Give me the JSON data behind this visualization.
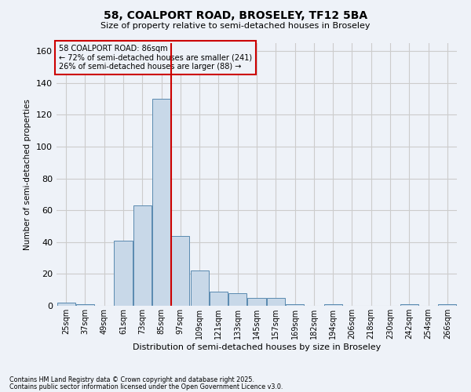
{
  "title_line1": "58, COALPORT ROAD, BROSELEY, TF12 5BA",
  "title_line2": "Size of property relative to semi-detached houses in Broseley",
  "xlabel": "Distribution of semi-detached houses by size in Broseley",
  "ylabel": "Number of semi-detached properties",
  "annotation_line1": "58 COALPORT ROAD: 86sqm",
  "annotation_line2": "← 72% of semi-detached houses are smaller (241)",
  "annotation_line3": "26% of semi-detached houses are larger (88) →",
  "footnote1": "Contains HM Land Registry data © Crown copyright and database right 2025.",
  "footnote2": "Contains public sector information licensed under the Open Government Licence v3.0.",
  "bins": [
    "25sqm",
    "37sqm",
    "49sqm",
    "61sqm",
    "73sqm",
    "85sqm",
    "97sqm",
    "109sqm",
    "121sqm",
    "133sqm",
    "145sqm",
    "157sqm",
    "169sqm",
    "182sqm",
    "194sqm",
    "206sqm",
    "218sqm",
    "230sqm",
    "242sqm",
    "254sqm",
    "266sqm"
  ],
  "values": [
    2,
    1,
    0,
    41,
    63,
    130,
    44,
    22,
    9,
    8,
    5,
    5,
    1,
    0,
    1,
    0,
    0,
    0,
    1,
    0,
    1
  ],
  "bar_color": "#c8d8e8",
  "bar_edge_color": "#5a8ab0",
  "vline_color": "#cc0000",
  "grid_color": "#cccccc",
  "ylim": [
    0,
    165
  ],
  "yticks": [
    0,
    20,
    40,
    60,
    80,
    100,
    120,
    140,
    160
  ],
  "annotation_box_color": "#cc0000",
  "bg_color": "#eef2f8"
}
